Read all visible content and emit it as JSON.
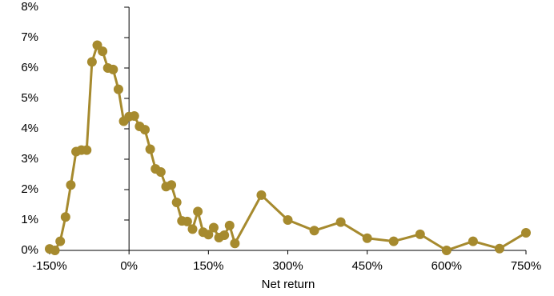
{
  "chart_data": {
    "type": "line",
    "x_label": "Net return",
    "x": [
      -150,
      -140,
      -130,
      -120,
      -110,
      -100,
      -90,
      -80,
      -70,
      -60,
      -50,
      -40,
      -30,
      -20,
      -10,
      0,
      10,
      20,
      30,
      40,
      50,
      60,
      70,
      80,
      90,
      100,
      110,
      120,
      130,
      140,
      150,
      160,
      170,
      180,
      190,
      200,
      250,
      300,
      350,
      400,
      450,
      500,
      550,
      600,
      650,
      700,
      750
    ],
    "values": [
      0.05,
      0.0,
      0.3,
      1.1,
      2.15,
      3.25,
      3.3,
      3.3,
      6.2,
      6.75,
      6.55,
      6.0,
      5.95,
      5.3,
      4.25,
      4.4,
      4.42,
      4.08,
      3.97,
      3.33,
      2.68,
      2.58,
      2.1,
      2.15,
      1.58,
      0.97,
      0.95,
      0.7,
      1.28,
      0.6,
      0.52,
      0.75,
      0.42,
      0.5,
      0.82,
      0.23,
      1.82,
      1.0,
      0.65,
      0.93,
      0.4,
      0.3,
      0.53,
      0.0,
      0.3,
      0.06,
      0.58
    ],
    "color": "#a68a2e",
    "xlim": [
      -150,
      750
    ],
    "xticks": [
      {
        "value": -150,
        "label": "-150%"
      },
      {
        "value": 0,
        "label": "0%"
      },
      {
        "value": 150,
        "label": "150%"
      },
      {
        "value": 300,
        "label": "300%"
      },
      {
        "value": 450,
        "label": "450%"
      },
      {
        "value": 600,
        "label": "600%"
      },
      {
        "value": 750,
        "label": "750%"
      }
    ],
    "ylim": [
      0,
      8
    ],
    "yticks": [
      {
        "value": 0,
        "label": "0%"
      },
      {
        "value": 1,
        "label": "1%"
      },
      {
        "value": 2,
        "label": "2%"
      },
      {
        "value": 3,
        "label": "3%"
      },
      {
        "value": 4,
        "label": "4%"
      },
      {
        "value": 5,
        "label": "5%"
      },
      {
        "value": 6,
        "label": "6%"
      },
      {
        "value": 7,
        "label": "7%"
      },
      {
        "value": 8,
        "label": "8%"
      }
    ]
  }
}
